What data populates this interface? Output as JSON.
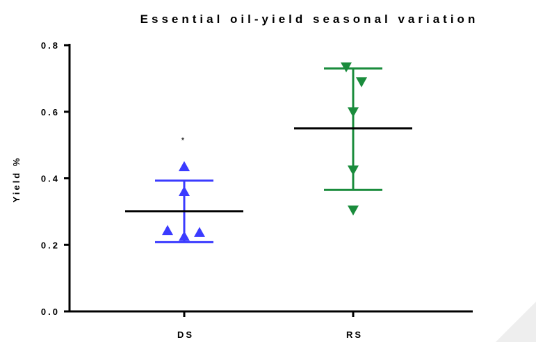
{
  "chart_data": {
    "type": "scatter",
    "title": "Essential oil-yield seasonal variation",
    "xlabel": "",
    "ylabel": "Yield %",
    "ylim": [
      0,
      0.8
    ],
    "yticks": [
      "0.0",
      "0.2",
      "0.4",
      "0.6",
      "0.8"
    ],
    "yticks_values": [
      0,
      0.2,
      0.4,
      0.6,
      0.8
    ],
    "categories": [
      "DS",
      "RS"
    ],
    "grid": false,
    "series": [
      {
        "category": "DS",
        "marker": "triangle-up",
        "color": "#3b3bff",
        "points": [
          0.435,
          0.36,
          0.243,
          0.225,
          0.237
        ],
        "mean": 0.301,
        "sd_upper": 0.393,
        "sd_lower": 0.208
      },
      {
        "category": "RS",
        "marker": "triangle-down",
        "color": "#1a8c3c",
        "points": [
          0.735,
          0.69,
          0.6,
          0.425,
          0.305
        ],
        "mean": 0.55,
        "sd_upper": 0.73,
        "sd_lower": 0.365
      }
    ],
    "annotations": [
      {
        "text": "*",
        "category": "DS",
        "y": 0.51
      }
    ]
  }
}
